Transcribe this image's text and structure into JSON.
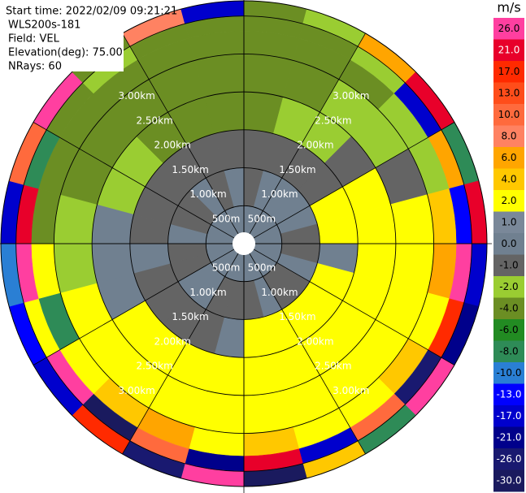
{
  "chart_data": {
    "type": "ppi",
    "info": [
      "Start time: 2022/02/09 09:21:21",
      "WLS200s-181",
      "Field: VEL",
      "Elevation(deg): 75.00",
      "NRays: 60"
    ],
    "colorbar_title": "m/s",
    "colorbar": [
      {
        "value": 26,
        "label": "26.0",
        "color": "#ff3fa0"
      },
      {
        "value": 21,
        "label": "21.0",
        "color": "#e8002a"
      },
      {
        "value": 17,
        "label": "17.0",
        "color": "#ff2a00"
      },
      {
        "value": 13,
        "label": "13.0",
        "color": "#ff4d1a"
      },
      {
        "value": 10,
        "label": "10.0",
        "color": "#ff6a3d"
      },
      {
        "value": 8,
        "label": "8.0",
        "color": "#ff8262"
      },
      {
        "value": 6,
        "label": "6.0",
        "color": "#ffa500"
      },
      {
        "value": 4,
        "label": "4.0",
        "color": "#ffc800"
      },
      {
        "value": 2,
        "label": "2.0",
        "color": "#ffff00"
      },
      {
        "value": 1,
        "label": "1.0",
        "color": "#7a8899"
      },
      {
        "value": 0,
        "label": "0.0",
        "color": "#708090"
      },
      {
        "value": -1,
        "label": "-1.0",
        "color": "#646464"
      },
      {
        "value": -2,
        "label": "-2.0",
        "color": "#9acd32"
      },
      {
        "value": -4,
        "label": "-4.0",
        "color": "#6b8e23"
      },
      {
        "value": -6,
        "label": "-6.0",
        "color": "#228b22"
      },
      {
        "value": -8,
        "label": "-8.0",
        "color": "#2e8b57"
      },
      {
        "value": -10,
        "label": "-10.0",
        "color": "#2a7fd4"
      },
      {
        "value": -13,
        "label": "-13.0",
        "color": "#0000ff"
      },
      {
        "value": -17,
        "label": "-17.0",
        "color": "#0000cd"
      },
      {
        "value": -21,
        "label": "-21.0",
        "color": "#00008b"
      },
      {
        "value": -26,
        "label": "-26.0",
        "color": "#191970"
      },
      {
        "value": -30,
        "label": "-30.0",
        "color": "#1a1a5e"
      }
    ],
    "rticks": [
      {
        "value": 0.5,
        "label": "500m"
      },
      {
        "value": 1.0,
        "label": "1.00km"
      },
      {
        "value": 1.5,
        "label": "1.50km"
      },
      {
        "value": 2.0,
        "label": "2.00km"
      },
      {
        "value": 2.5,
        "label": "2.50km"
      },
      {
        "value": 3.0,
        "label": "3.00km"
      }
    ],
    "rlim": [
      0,
      3.2
    ],
    "ranges": [
      0.15,
      0.5,
      1.0,
      1.5,
      2.0,
      2.5,
      2.8,
      3.0,
      3.2
    ],
    "azimuths": [
      0,
      15,
      30,
      45,
      60,
      75,
      90,
      105,
      120,
      135,
      150,
      165,
      180,
      195,
      210,
      225,
      240,
      255,
      270,
      285,
      300,
      315,
      330,
      345,
      360
    ],
    "velocity": [
      [
        0,
        -0.5,
        -0.5,
        -3,
        -3,
        -3,
        -3,
        -3
      ],
      [
        0,
        0.5,
        -0.5,
        -1.5,
        -3,
        -3,
        -3,
        -1.5
      ],
      [
        0,
        0.5,
        -0.5,
        -1.5,
        -1.5,
        -3,
        -1.5,
        7
      ],
      [
        0,
        0.5,
        -0.5,
        -0.5,
        -1.5,
        -1.5,
        -14,
        22
      ],
      [
        0,
        0.5,
        3,
        3,
        -0.5,
        -1.5,
        7,
        -7
      ],
      [
        0,
        -0.5,
        3,
        3,
        3,
        5,
        -11,
        22
      ],
      [
        0,
        -0.5,
        0.5,
        3,
        3,
        7,
        28,
        -14
      ],
      [
        0,
        0.5,
        3,
        3,
        3,
        3,
        18,
        -18
      ],
      [
        0,
        -0.5,
        3,
        3,
        3,
        5,
        -22,
        28
      ],
      [
        0,
        -0.5,
        3,
        3,
        3,
        3,
        12,
        -7
      ],
      [
        0,
        0.5,
        3,
        3,
        3,
        3,
        -14,
        5
      ],
      [
        0,
        -0.5,
        3,
        3,
        3,
        5,
        22,
        -27
      ],
      [
        0,
        -0.5,
        0.5,
        3,
        3,
        3,
        -18,
        28
      ],
      [
        0,
        -0.5,
        -0.5,
        3,
        3,
        7,
        12,
        -22
      ],
      [
        0,
        0.5,
        -0.5,
        3,
        3,
        5,
        -27,
        18
      ],
      [
        0,
        0.5,
        -0.5,
        3,
        3,
        3,
        28,
        -14
      ],
      [
        0,
        -0.5,
        -0.5,
        0.5,
        3,
        -7,
        3,
        -11
      ],
      [
        0,
        -0.5,
        0.5,
        0.5,
        -1.5,
        3,
        28,
        -9
      ],
      [
        0,
        0.5,
        -0.5,
        0.5,
        -1.5,
        -3,
        22,
        -14
      ],
      [
        0,
        -0.5,
        -0.5,
        -1.5,
        -3,
        -3,
        -7,
        12
      ],
      [
        0,
        -0.5,
        -0.5,
        -1.5,
        -3,
        -3,
        -3,
        28
      ],
      [
        0,
        0.5,
        -0.5,
        -3,
        -3,
        -3,
        -1.5,
        -3
      ],
      [
        0,
        -0.5,
        -0.5,
        -3,
        -3,
        -3,
        -3,
        9
      ],
      [
        0,
        0.5,
        -0.5,
        -3,
        -3,
        -3,
        -3,
        -14
      ]
    ]
  }
}
